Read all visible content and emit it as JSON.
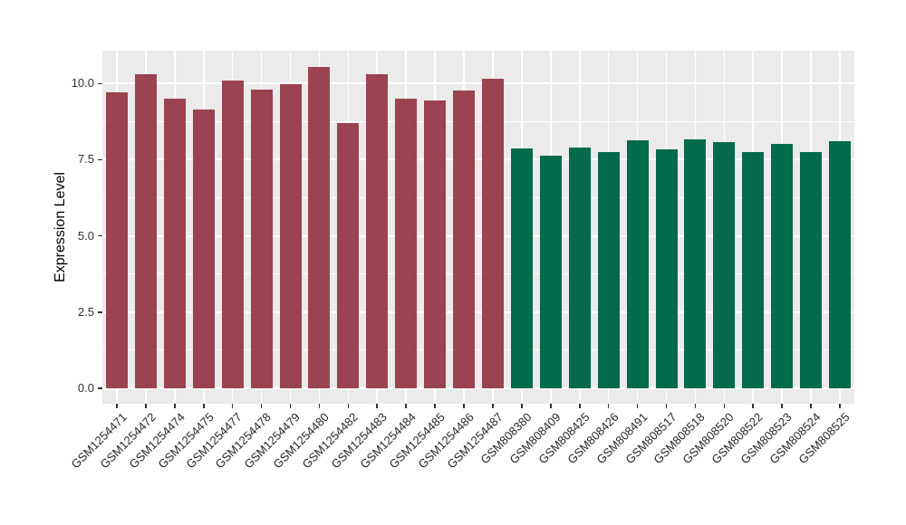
{
  "chart_data": {
    "type": "bar",
    "title": "",
    "xlabel": "",
    "ylabel": "Expression Level",
    "ylim": [
      0,
      11.1
    ],
    "legend_position": "none",
    "grid": "major and minor horizontal white gridlines plus vertical white gridlines at each category, on grey panel",
    "panel_background": "#EBEBEB",
    "grid_color": "#FFFFFF",
    "tick_color": "#333333",
    "bar_colors": [
      "#9B4351",
      "#046A4C"
    ],
    "y_major_ticks": [
      {
        "label": "0.0",
        "value": 0
      },
      {
        "label": "2.5",
        "value": 2.5
      },
      {
        "label": "5.0",
        "value": 5
      },
      {
        "label": "7.5",
        "value": 7.5
      },
      {
        "label": "10.0",
        "value": 10
      }
    ],
    "y_minor_ticks": [
      1.25,
      3.75,
      6.25,
      8.75
    ],
    "categories": [
      "GSM1254471",
      "GSM1254472",
      "GSM1254474",
      "GSM1254475",
      "GSM1254477",
      "GSM1254478",
      "GSM1254479",
      "GSM1254480",
      "GSM1254482",
      "GSM1254483",
      "GSM1254484",
      "GSM1254485",
      "GSM1254486",
      "GSM1254487",
      "GSM808380",
      "GSM808409",
      "GSM808425",
      "GSM808426",
      "GSM808491",
      "GSM808517",
      "GSM808518",
      "GSM808520",
      "GSM808522",
      "GSM808523",
      "GSM808524",
      "GSM808525"
    ],
    "values": [
      9.71,
      10.31,
      9.51,
      9.14,
      10.09,
      9.79,
      9.99,
      10.55,
      8.7,
      10.3,
      9.51,
      9.43,
      9.76,
      10.17,
      7.87,
      7.64,
      7.9,
      7.75,
      8.13,
      7.84,
      8.18,
      8.07,
      7.76,
      8.01,
      7.74,
      8.12
    ],
    "color_index": [
      0,
      0,
      0,
      0,
      0,
      0,
      0,
      0,
      0,
      0,
      0,
      0,
      0,
      0,
      1,
      1,
      1,
      1,
      1,
      1,
      1,
      1,
      1,
      1,
      1,
      1
    ]
  }
}
